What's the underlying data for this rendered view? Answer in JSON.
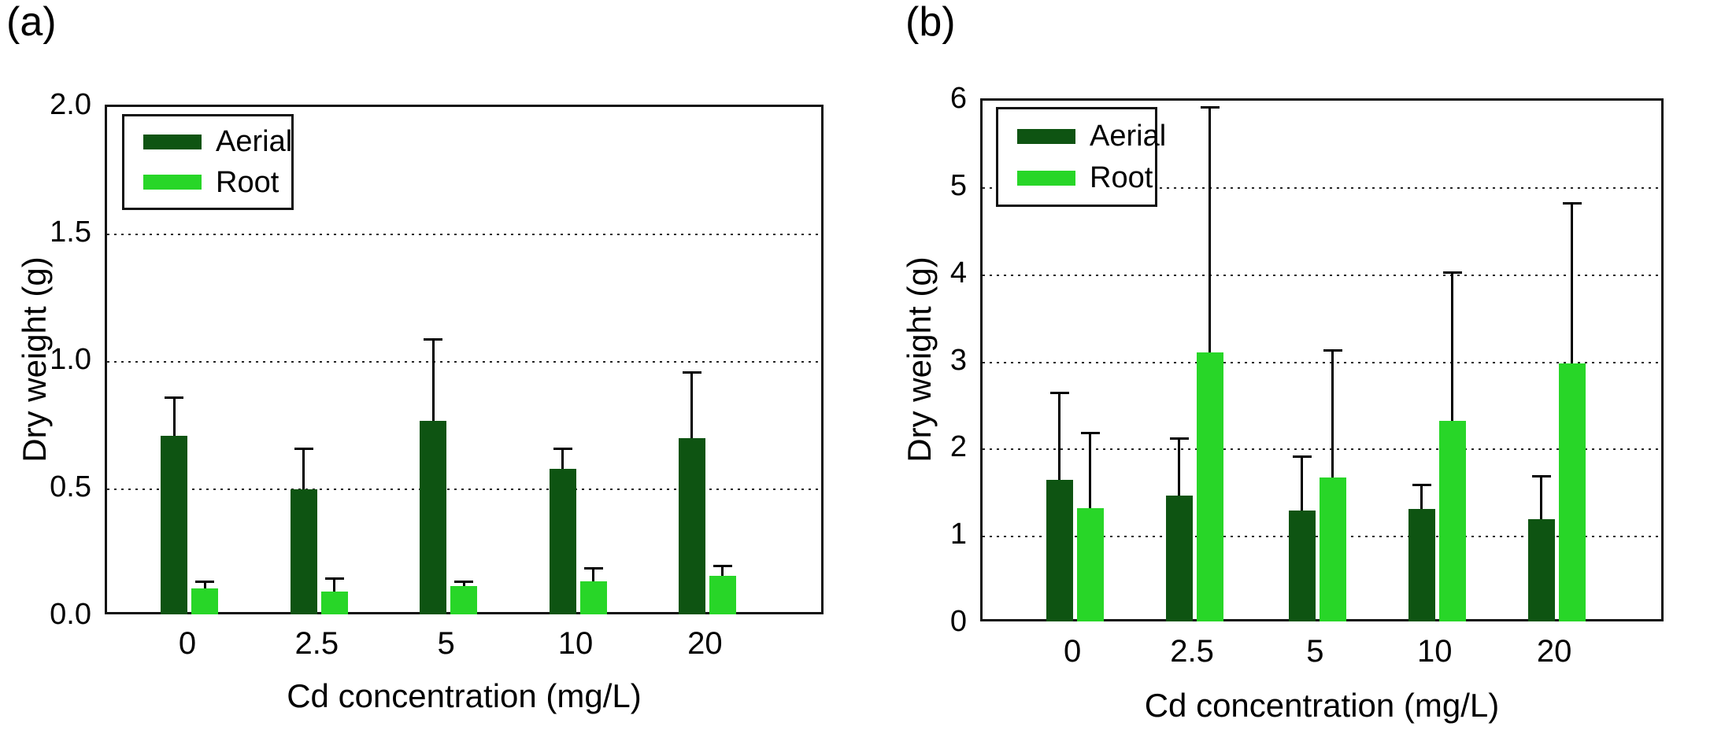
{
  "figure": {
    "background": "#ffffff",
    "series_colors": {
      "aerial": "#0E5412",
      "root": "#28D628"
    }
  },
  "chart_data": [
    {
      "type": "bar",
      "panel_label": "(a)",
      "xlabel": "Cd concentration (mg/L)",
      "ylabel": "Dry weight (g)",
      "categories": [
        "0",
        "2.5",
        "5",
        "10",
        "20"
      ],
      "ylim": [
        0,
        2.0
      ],
      "ytick_labels": [
        "0.0",
        "0.5",
        "1.0",
        "1.5",
        "2.0"
      ],
      "grid": "horizontal dotted lines at 0.5, 1.0, 1.5",
      "legend_position": "top-left inside plot",
      "error_bars": "upper only",
      "series": [
        {
          "name": "Aerial",
          "color": "#0E5412",
          "values": [
            0.71,
            0.5,
            0.77,
            0.58,
            0.7
          ],
          "error_up": [
            0.15,
            0.16,
            0.32,
            0.08,
            0.26
          ]
        },
        {
          "name": "Root",
          "color": "#28D628",
          "values": [
            0.11,
            0.1,
            0.12,
            0.14,
            0.16
          ],
          "error_up": [
            0.03,
            0.05,
            0.02,
            0.05,
            0.04
          ]
        }
      ]
    },
    {
      "type": "bar",
      "panel_label": "(b)",
      "xlabel": "Cd concentration (mg/L)",
      "ylabel": "Dry weight (g)",
      "categories": [
        "0",
        "2.5",
        "5",
        "10",
        "20"
      ],
      "ylim": [
        0,
        6
      ],
      "ytick_labels": [
        "0",
        "1",
        "2",
        "3",
        "4",
        "5",
        "6"
      ],
      "grid": "horizontal dotted lines at 1, 2, 3, 4, 5",
      "legend_position": "top-left inside plot",
      "error_bars": "upper only",
      "series": [
        {
          "name": "Aerial",
          "color": "#0E5412",
          "values": [
            1.65,
            1.47,
            1.3,
            1.32,
            1.2
          ],
          "error_up": [
            1.0,
            0.66,
            0.62,
            0.28,
            0.5
          ]
        },
        {
          "name": "Root",
          "color": "#28D628",
          "values": [
            1.33,
            3.11,
            1.68,
            2.33,
            2.99
          ],
          "error_up": [
            0.86,
            2.82,
            1.46,
            1.7,
            1.84
          ]
        }
      ]
    }
  ]
}
